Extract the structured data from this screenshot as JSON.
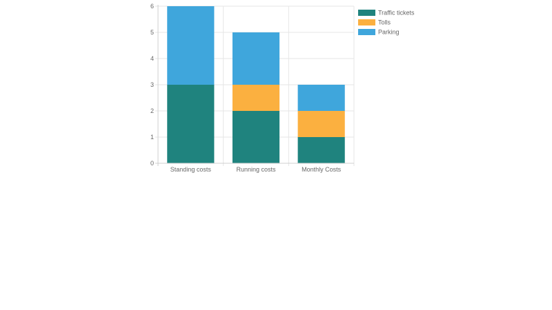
{
  "chart_data": {
    "type": "bar",
    "stacked": true,
    "categories": [
      "Standing costs",
      "Running costs",
      "Monthly Costs"
    ],
    "series": [
      {
        "name": "Traffic tickets",
        "values": [
          3,
          2,
          1
        ],
        "color": "#1f837e"
      },
      {
        "name": "Tolls",
        "values": [
          0,
          1,
          1
        ],
        "color": "#fbb040"
      },
      {
        "name": "Parking",
        "values": [
          3,
          2,
          1
        ],
        "color": "#3fa6dc"
      }
    ],
    "yticks": [
      0,
      1,
      2,
      3,
      4,
      5,
      6
    ],
    "ylim": [
      0,
      6
    ],
    "grid": true,
    "legend_position": "right"
  }
}
